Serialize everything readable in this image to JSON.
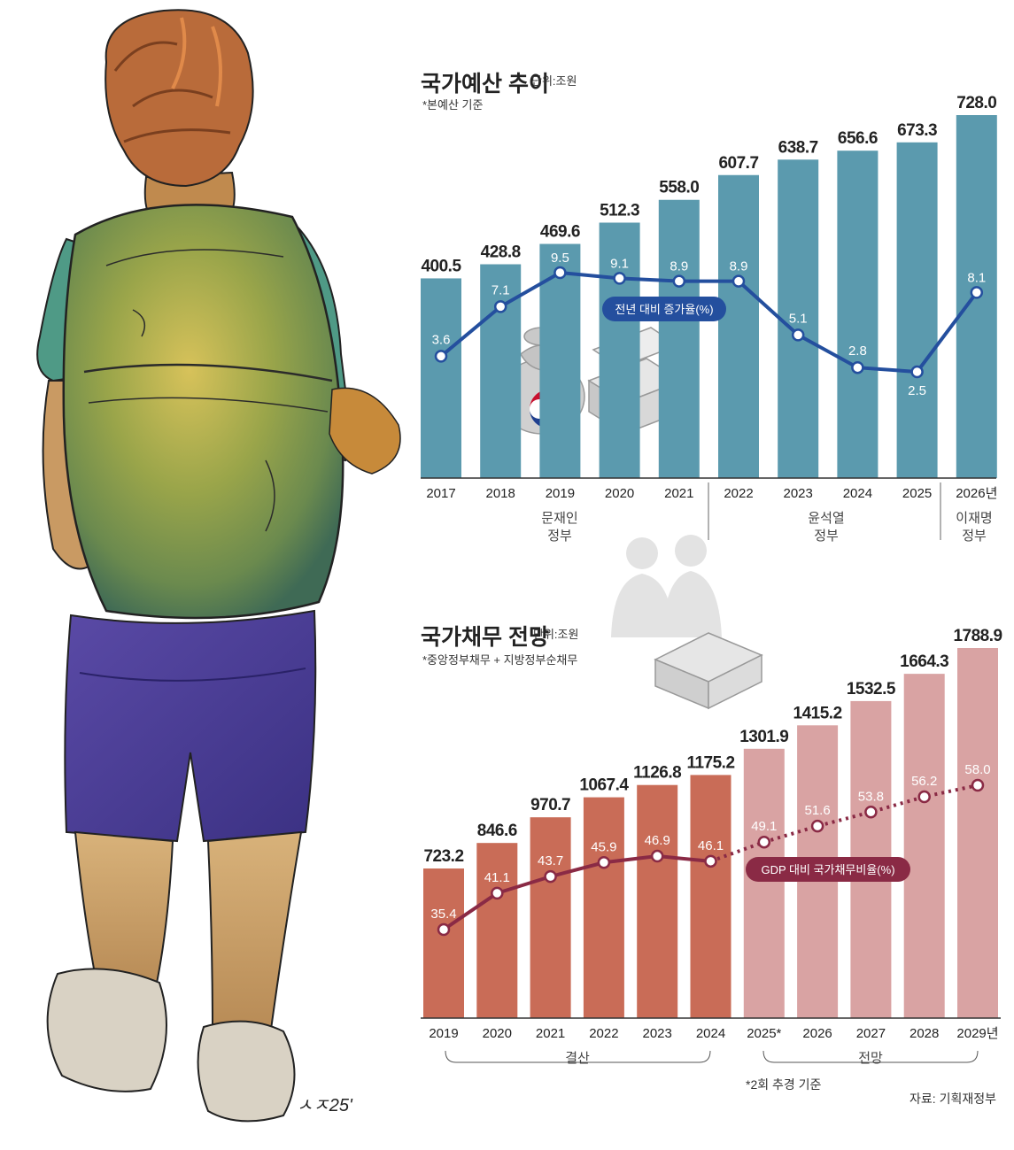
{
  "artist_signature": "ㅅㅈ25'",
  "charts": {
    "budget": {
      "title": "국가예산 추이",
      "unit": "단위:조원",
      "note": "*본예산 기준",
      "legend": "전년 대비 증가율(%)",
      "groups": [
        {
          "label_line1": "문재인",
          "label_line2": "정부"
        },
        {
          "label_line1": "윤석열",
          "label_line2": "정부"
        },
        {
          "label_line1": "이재명",
          "label_line2": "정부"
        }
      ]
    },
    "debt": {
      "title": "국가채무 전망",
      "unit": "단위:조원",
      "note": "*중앙정부채무 + 지방정부순채무",
      "legend": "GDP 대비 국가채무비율(%)",
      "groups": [
        {
          "label": "결산"
        },
        {
          "label": "전망"
        }
      ],
      "footnote": "*2회 추경 기준"
    },
    "source": "자료: 기획재정부"
  },
  "colors": {
    "budget_bar": "#5b9aae",
    "budget_line": "#244f9e",
    "debt_bar_actual": "#c96c57",
    "debt_bar_forecast": "#d9a3a3",
    "debt_line": "#8a2a45"
  },
  "chart_data": [
    {
      "type": "bar",
      "title": "국가예산 추이",
      "unit": "조원",
      "categories": [
        "2017",
        "2018",
        "2019",
        "2020",
        "2021",
        "2022",
        "2023",
        "2024",
        "2025",
        "2026년"
      ],
      "series": [
        {
          "name": "",
          "values": [
            400.5,
            428.8,
            469.6,
            512.3,
            558.0,
            607.7,
            638.7,
            656.6,
            673.3,
            728.0
          ]
        },
        {
          "name": "전년 대비 증가율(%)",
          "type": "line",
          "values": [
            3.6,
            7.1,
            9.5,
            9.1,
            8.9,
            8.9,
            5.1,
            2.8,
            2.5,
            8.1
          ]
        }
      ],
      "value_labels": [
        "400.5",
        "428.8",
        "469.6",
        "512.3",
        "558.0",
        "607.7",
        "638.7",
        "656.6",
        "673.3",
        "728.0"
      ],
      "rate_labels": [
        "3.6",
        "7.1",
        "9.5",
        "9.1",
        "8.9",
        "8.9",
        "5.1",
        "2.8",
        "2.5",
        "8.1"
      ],
      "grid": false
    },
    {
      "type": "bar",
      "title": "국가채무 전망",
      "unit": "조원",
      "categories": [
        "2019",
        "2020",
        "2021",
        "2022",
        "2023",
        "2024",
        "2025*",
        "2026",
        "2027",
        "2028",
        "2029년"
      ],
      "series": [
        {
          "name": "",
          "values": [
            723.2,
            846.6,
            970.7,
            1067.4,
            1126.8,
            1175.2,
            1301.9,
            1415.2,
            1532.5,
            1664.3,
            1788.9
          ]
        },
        {
          "name": "GDP 대비 국가채무비율(%)",
          "type": "line",
          "values": [
            35.4,
            41.1,
            43.7,
            45.9,
            46.9,
            46.1,
            49.1,
            51.6,
            53.8,
            56.2,
            58.0
          ]
        }
      ],
      "value_labels": [
        "723.2",
        "846.6",
        "970.7",
        "1067.4",
        "1126.8",
        "1175.2",
        "1301.9",
        "1415.2",
        "1532.5",
        "1664.3",
        "1788.9"
      ],
      "rate_labels": [
        "35.4",
        "41.1",
        "43.7",
        "45.9",
        "46.9",
        "46.1",
        "49.1",
        "51.6",
        "53.8",
        "56.2",
        "58.0"
      ],
      "forecast_from_index": 6,
      "grid": false
    }
  ]
}
